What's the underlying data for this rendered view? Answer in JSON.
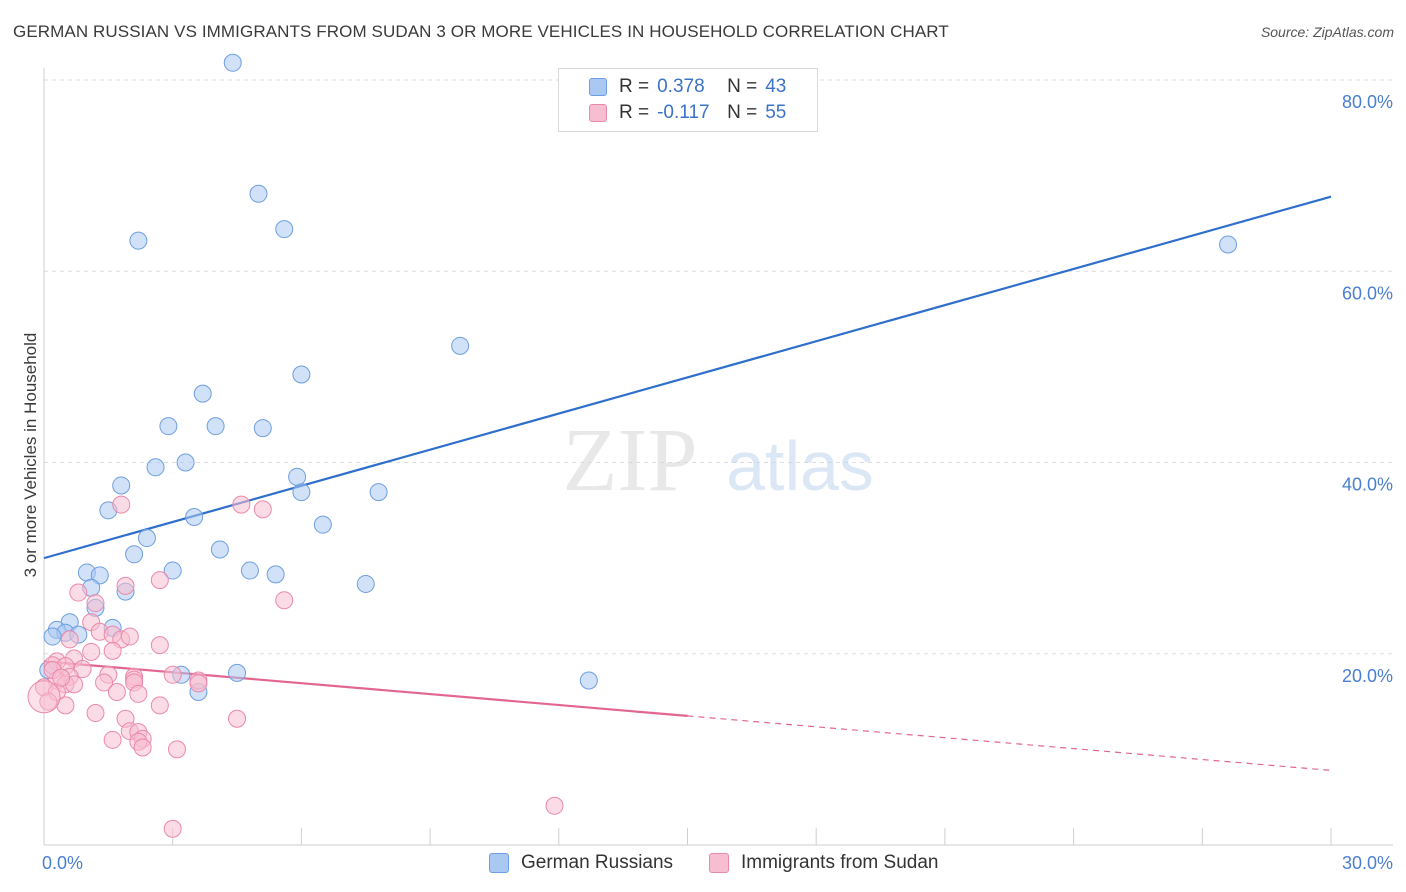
{
  "header": {
    "title": "GERMAN RUSSIAN VS IMMIGRANTS FROM SUDAN 3 OR MORE VEHICLES IN HOUSEHOLD CORRELATION CHART",
    "source": "Source: ZipAtlas.com"
  },
  "watermark": {
    "zip": "ZIP",
    "atlas": "atlas"
  },
  "legend": {
    "rows": [
      {
        "r_label": "R =",
        "r_value": "0.378",
        "n_label": "N =",
        "n_value": "43",
        "color": "#a9c8f2",
        "border": "#6f9fe0"
      },
      {
        "r_label": "R =",
        "r_value": "-0.117",
        "n_label": "N =",
        "n_value": "55",
        "color": "#f7bdd0",
        "border": "#ea8aab"
      }
    ]
  },
  "bottom_legend": {
    "items": [
      {
        "label": "German Russians",
        "color": "#a9c8f2",
        "border": "#6f9fe0"
      },
      {
        "label": "Immigrants from Sudan",
        "color": "#f7bdd0",
        "border": "#ea8aab"
      }
    ]
  },
  "chart_data": {
    "type": "scatter",
    "title": "GERMAN RUSSIAN VS IMMIGRANTS FROM SUDAN 3 OR MORE VEHICLES IN HOUSEHOLD CORRELATION CHART",
    "xlabel": "",
    "ylabel": "3 or more Vehicles in Household",
    "xlim": [
      0,
      30
    ],
    "ylim": [
      0,
      80
    ],
    "x_tick_labels": [
      {
        "value": 0,
        "label": "0.0%"
      },
      {
        "value": 30,
        "label": "30.0%"
      }
    ],
    "y_tick_labels": [
      {
        "value": 20,
        "label": "20.0%"
      },
      {
        "value": 40,
        "label": "40.0%"
      },
      {
        "value": 60,
        "label": "60.0%"
      },
      {
        "value": 80,
        "label": "80.0%"
      }
    ],
    "series": [
      {
        "name": "German Russians",
        "color": "#a9c8f2",
        "stroke": "#6f9fe0",
        "line_color": "#2f6fcc",
        "trend": {
          "x": [
            0,
            30
          ],
          "y": [
            30.0,
            67.8
          ],
          "dash_from": null
        },
        "points": [
          [
            4.4,
            81.8
          ],
          [
            5.0,
            68.1
          ],
          [
            2.2,
            63.2
          ],
          [
            5.6,
            64.4
          ],
          [
            27.6,
            62.8
          ],
          [
            9.7,
            52.2
          ],
          [
            6.0,
            49.2
          ],
          [
            3.7,
            47.2
          ],
          [
            2.9,
            43.8
          ],
          [
            4.0,
            43.8
          ],
          [
            5.1,
            43.6
          ],
          [
            2.6,
            39.5
          ],
          [
            3.3,
            40.0
          ],
          [
            6.0,
            36.9
          ],
          [
            7.8,
            36.9
          ],
          [
            5.9,
            38.5
          ],
          [
            1.8,
            37.6
          ],
          [
            1.5,
            35.0
          ],
          [
            3.5,
            34.3
          ],
          [
            6.5,
            33.5
          ],
          [
            2.4,
            32.1
          ],
          [
            2.1,
            30.4
          ],
          [
            4.1,
            30.9
          ],
          [
            1.0,
            28.5
          ],
          [
            1.3,
            28.2
          ],
          [
            3.0,
            28.7
          ],
          [
            4.8,
            28.7
          ],
          [
            5.4,
            28.3
          ],
          [
            7.5,
            27.3
          ],
          [
            1.1,
            26.9
          ],
          [
            1.9,
            26.5
          ],
          [
            1.2,
            24.8
          ],
          [
            0.6,
            23.3
          ],
          [
            0.3,
            22.5
          ],
          [
            0.5,
            22.2
          ],
          [
            1.6,
            22.7
          ],
          [
            0.2,
            21.8
          ],
          [
            0.8,
            22.0
          ],
          [
            3.2,
            17.8
          ],
          [
            4.5,
            18.0
          ],
          [
            3.6,
            16.0
          ],
          [
            12.7,
            17.2
          ],
          [
            0.1,
            18.3
          ]
        ]
      },
      {
        "name": "Immigrants from Sudan",
        "color": "#f7bdd0",
        "stroke": "#ea8aab",
        "line_color": "#e2668f",
        "trend": {
          "x": [
            0,
            30
          ],
          "y": [
            19.2,
            7.8
          ],
          "dash_from": 15
        },
        "points": [
          [
            1.8,
            35.6
          ],
          [
            4.6,
            35.6
          ],
          [
            5.1,
            35.1
          ],
          [
            2.7,
            27.7
          ],
          [
            1.9,
            27.1
          ],
          [
            5.6,
            25.6
          ],
          [
            0.8,
            26.4
          ],
          [
            1.2,
            25.3
          ],
          [
            1.1,
            23.3
          ],
          [
            1.3,
            22.3
          ],
          [
            0.6,
            21.5
          ],
          [
            1.6,
            22.0
          ],
          [
            1.8,
            21.5
          ],
          [
            2.0,
            21.8
          ],
          [
            2.7,
            20.9
          ],
          [
            1.6,
            20.3
          ],
          [
            1.1,
            20.2
          ],
          [
            0.7,
            19.5
          ],
          [
            0.3,
            19.2
          ],
          [
            0.2,
            18.8
          ],
          [
            0.5,
            18.7
          ],
          [
            0.9,
            18.4
          ],
          [
            0.6,
            17.6
          ],
          [
            1.5,
            17.8
          ],
          [
            2.1,
            17.6
          ],
          [
            1.4,
            17.0
          ],
          [
            2.1,
            17.3
          ],
          [
            3.0,
            17.8
          ],
          [
            3.6,
            17.2
          ],
          [
            0.3,
            17.2
          ],
          [
            0.5,
            16.8
          ],
          [
            0.0,
            16.5
          ],
          [
            0.3,
            16.0
          ],
          [
            0.7,
            16.8
          ],
          [
            2.1,
            17.0
          ],
          [
            1.7,
            16.0
          ],
          [
            2.2,
            15.8
          ],
          [
            3.6,
            16.9
          ],
          [
            0.1,
            15.0
          ],
          [
            0.5,
            14.6
          ],
          [
            2.7,
            14.6
          ],
          [
            1.2,
            13.8
          ],
          [
            1.9,
            13.2
          ],
          [
            4.5,
            13.2
          ],
          [
            2.0,
            11.9
          ],
          [
            2.2,
            11.8
          ],
          [
            1.6,
            11.0
          ],
          [
            2.3,
            11.1
          ],
          [
            2.2,
            10.8
          ],
          [
            2.3,
            10.2
          ],
          [
            3.1,
            10.0
          ],
          [
            11.9,
            4.1
          ],
          [
            3.0,
            1.7
          ],
          [
            0.2,
            18.3
          ],
          [
            0.4,
            17.5
          ]
        ]
      }
    ]
  }
}
